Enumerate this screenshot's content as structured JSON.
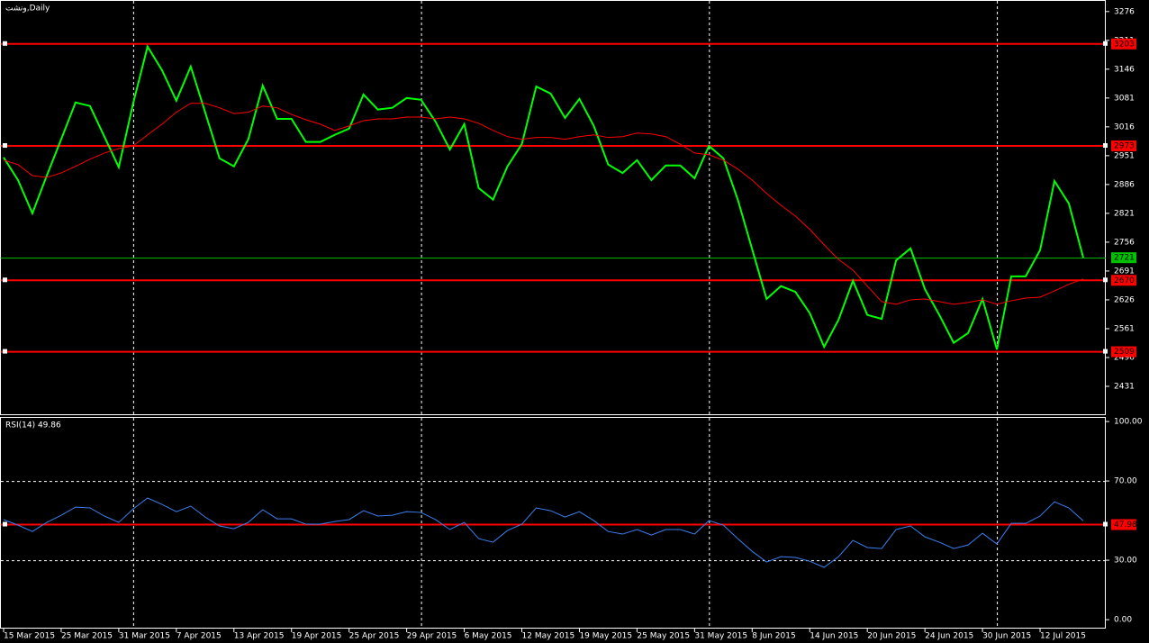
{
  "chart_data": [
    {
      "type": "line",
      "title": "ونشت,Daily",
      "categories": [
        "15 Mar 2015",
        null,
        null,
        null,
        "25 Mar 2015",
        null,
        null,
        null,
        "31 Mar 2015",
        null,
        null,
        null,
        "7 Apr 2015",
        null,
        null,
        null,
        "13 Apr 2015",
        null,
        null,
        null,
        "19 Apr 2015",
        null,
        null,
        null,
        "25 Apr 2015",
        null,
        null,
        null,
        "29 Apr 2015",
        null,
        null,
        null,
        "6 May 2015",
        null,
        null,
        null,
        "12 May 2015",
        null,
        null,
        null,
        "19 May 2015",
        null,
        null,
        null,
        "25 May 2015",
        null,
        null,
        null,
        "31 May 2015",
        null,
        null,
        null,
        "8 Jun 2015",
        null,
        null,
        null,
        "14 Jun 2015",
        null,
        null,
        null,
        "20 Jun 2015",
        null,
        null,
        null,
        "24 Jun 2015",
        null,
        null,
        null,
        "30 Jun 2015",
        null,
        null,
        null,
        "12 Jul 2015",
        null,
        null,
        null
      ],
      "series": [
        {
          "color": "#00ff00",
          "values": [
            2947,
            2896,
            2821,
            2906,
            2988,
            3071,
            3063,
            2994,
            2925,
            3069,
            3197,
            3144,
            3075,
            3152,
            3049,
            2945,
            2927,
            2988,
            3109,
            3034,
            3034,
            2982,
            2982,
            2998,
            3012,
            3089,
            3055,
            3059,
            3081,
            3077,
            3028,
            2965,
            3022,
            2878,
            2852,
            2927,
            2977,
            3107,
            3091,
            3036,
            3079,
            3018,
            2931,
            2912,
            2941,
            2896,
            2929,
            2929,
            2900,
            2973,
            2945,
            2852,
            2740,
            2628,
            2657,
            2644,
            2596,
            2520,
            2581,
            2669,
            2592,
            2583,
            2715,
            2742,
            2650,
            2592,
            2529,
            2551,
            2628,
            2514,
            2679,
            2679,
            2738,
            2894,
            2843,
            2721
          ]
        },
        {
          "color": "#ff0000",
          "values": [
            2941,
            2931,
            2906,
            2902,
            2912,
            2927,
            2943,
            2957,
            2967,
            2973,
            2998,
            3022,
            3049,
            3069,
            3069,
            3059,
            3046,
            3049,
            3063,
            3059,
            3044,
            3032,
            3022,
            3008,
            3018,
            3030,
            3034,
            3034,
            3038,
            3038,
            3034,
            3038,
            3034,
            3024,
            3008,
            2994,
            2988,
            2992,
            2992,
            2988,
            2994,
            2998,
            2992,
            2994,
            3002,
            3000,
            2994,
            2977,
            2957,
            2953,
            2941,
            2921,
            2896,
            2866,
            2839,
            2815,
            2785,
            2750,
            2717,
            2693,
            2657,
            2622,
            2616,
            2626,
            2628,
            2622,
            2616,
            2620,
            2626,
            2616,
            2624,
            2630,
            2632,
            2646,
            2661,
            2673
          ]
        }
      ],
      "ylim": [
        2366,
        3302
      ],
      "yticks": [
        3276,
        3211,
        3146,
        3081,
        3016,
        2951,
        2886,
        2821,
        2756,
        2691,
        2626,
        2561,
        2496,
        2431
      ],
      "hlines": {
        "color": "#ff0000",
        "values": [
          3203,
          2973,
          2670,
          2509
        ]
      },
      "last_price": 2721,
      "last_price_color": "#00c000",
      "xgrid": [
        9,
        29,
        49,
        69
      ]
    },
    {
      "type": "line",
      "title": "RSI(14) 49.86",
      "series": [
        {
          "color": "#3a7ff0",
          "values": [
            50.5,
            47.7,
            44.5,
            49.1,
            52.7,
            56.8,
            56.4,
            52.3,
            49.1,
            55.9,
            61.4,
            58.2,
            54.5,
            57.3,
            51.8,
            47.3,
            45.9,
            49.1,
            55.5,
            50.9,
            50.9,
            48.2,
            48.2,
            49.5,
            50.5,
            55.0,
            52.3,
            52.7,
            54.5,
            54.1,
            50.5,
            45.5,
            49.1,
            40.9,
            39.1,
            45.0,
            48.2,
            56.4,
            55.0,
            51.8,
            54.5,
            50.0,
            44.5,
            43.2,
            45.5,
            42.7,
            45.5,
            45.5,
            43.2,
            50.0,
            47.7,
            40.9,
            34.5,
            29.1,
            31.8,
            31.4,
            29.5,
            26.4,
            31.8,
            40.0,
            36.4,
            35.9,
            45.5,
            47.3,
            41.8,
            39.1,
            35.9,
            37.7,
            43.6,
            38.2,
            48.6,
            48.6,
            52.3,
            59.5,
            56.4,
            49.86
          ]
        }
      ],
      "ylim": [
        -4.5,
        102.3
      ],
      "yticks": [
        {
          "value": 100,
          "label": "100.00"
        },
        {
          "value": 70,
          "label": "70.00"
        },
        {
          "value": 30,
          "label": "30.00"
        },
        {
          "value": 0,
          "label": "0.00"
        }
      ],
      "levels": [
        70,
        30
      ],
      "hlines": {
        "color": "#ff0000",
        "values": [
          {
            "value": 47.98,
            "label": "47.98"
          }
        ]
      }
    }
  ]
}
